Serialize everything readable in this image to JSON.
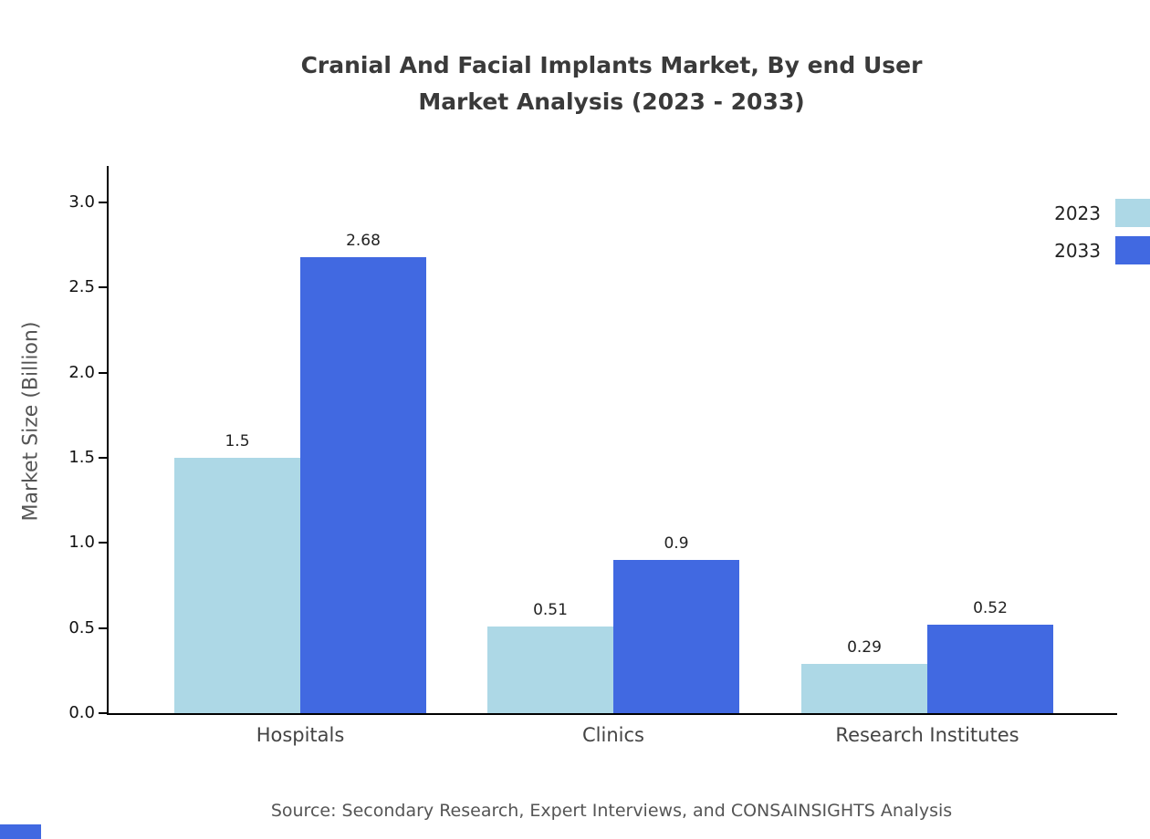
{
  "title_lines_note": "chart title shown on two lines",
  "source_text": "Source: Secondary Research, Expert Interviews, and CONSAINSIGHTS Analysis",
  "chart_data": {
    "type": "bar",
    "title": "Cranial And Facial Implants Market, By end User Market Analysis (2023 - 2033)",
    "title_lines": [
      "Cranial And Facial Implants Market, By end User",
      "Market Analysis (2023 - 2033)"
    ],
    "categories": [
      "Hospitals",
      "Clinics",
      "Research Institutes"
    ],
    "series": [
      {
        "name": "2023",
        "color": "#add8e6",
        "values": [
          1.5,
          0.51,
          0.29
        ]
      },
      {
        "name": "2033",
        "color": "#4169e1",
        "values": [
          2.68,
          0.9,
          0.52
        ]
      }
    ],
    "xlabel": "",
    "ylabel": "Market Size (Billion)",
    "ylim": [
      0,
      3.2
    ],
    "yticks": [
      0.0,
      0.5,
      1.0,
      1.5,
      2.0,
      2.5,
      3.0
    ],
    "grid": false,
    "legend_position": "top-right",
    "bar_value_labels": [
      [
        "1.5",
        "0.51",
        "0.29"
      ],
      [
        "2.68",
        "0.9",
        "0.52"
      ]
    ]
  }
}
